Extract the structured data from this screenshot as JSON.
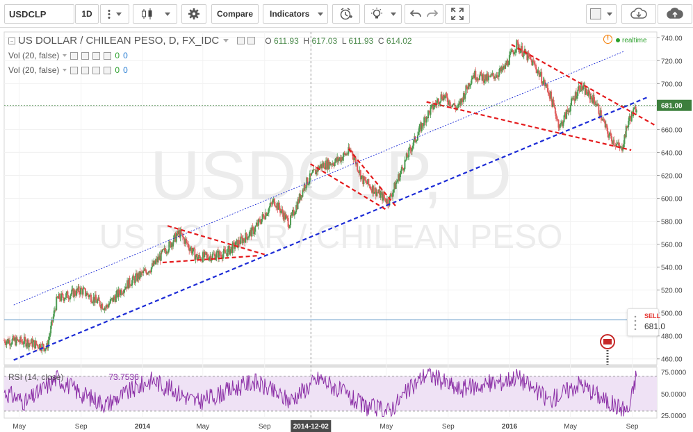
{
  "toolbar": {
    "symbol": "USDCLP",
    "interval": "1D",
    "compare_label": "Compare",
    "indicators_label": "Indicators",
    "icons": [
      "bar-chart-icon",
      "settings-gear-icon",
      "alert-clock-icon",
      "idea-bulb-icon",
      "undo-icon",
      "redo-icon",
      "fullscreen-icon",
      "color-square-icon",
      "cloud-download-icon",
      "cloud-upload-icon"
    ]
  },
  "legend": {
    "title": "US DOLLAR / CHILEAN PESO, D, FX_IDC",
    "open_label": "O",
    "open": "611.93",
    "high_label": "H",
    "high": "617.03",
    "low_label": "L",
    "low": "611.93",
    "close_label": "C",
    "close": "614.02",
    "realtime": "realtime",
    "vol1": "Vol (20, false)",
    "vol1_a": "0",
    "vol1_b": "0",
    "vol2": "Vol (20, false)",
    "vol2_a": "0",
    "vol2_b": "0"
  },
  "watermark": {
    "line1": "USDCLP, D",
    "line2": "US DOLLAR / CHILEAN PESO"
  },
  "sell_box": {
    "label": "SELL",
    "value": "681.0",
    "value_small": "0"
  },
  "price_tag": "681.00",
  "highlighted_date": "2014-12-02",
  "colors": {
    "up": "#4d9b52",
    "down": "#e05d5d",
    "blue": "#1c2bd6",
    "red": "#e41a1c",
    "rsi_line": "#8b2fa6",
    "rsi_band": "#efe2f5",
    "tag": "#3d7f3d"
  },
  "chart_data": [
    {
      "type": "line",
      "title": "US DOLLAR / CHILEAN PESO, D, FX_IDC",
      "price_axis": {
        "ticks": [
          "740.00",
          "720.00",
          "700.00",
          "680.00",
          "660.00",
          "640.00",
          "620.00",
          "600.00",
          "580.00",
          "560.00",
          "540.00",
          "520.00",
          "500.00",
          "480.00",
          "460.00"
        ],
        "ylim": [
          455,
          745
        ]
      },
      "time_axis": {
        "ticks": [
          "May",
          "Sep",
          "2014",
          "May",
          "Sep",
          "2014-12-02",
          "May",
          "Sep",
          "2016",
          "May",
          "Sep"
        ]
      },
      "xlim": [
        "2013-04-01",
        "2016-10-20"
      ],
      "series": [
        {
          "name": "USDCLP daily",
          "x": [
            "2013-04-01",
            "2013-05-15",
            "2013-06-25",
            "2013-07-15",
            "2013-09-01",
            "2013-10-20",
            "2013-12-01",
            "2014-01-20",
            "2014-03-15",
            "2014-04-20",
            "2014-06-15",
            "2014-08-10",
            "2014-09-20",
            "2014-10-20",
            "2014-11-20",
            "2014-12-20",
            "2015-01-20",
            "2015-02-20",
            "2015-03-15",
            "2015-05-05",
            "2015-06-15",
            "2015-07-20",
            "2015-08-20",
            "2015-09-20",
            "2015-10-20",
            "2015-11-20",
            "2015-12-20",
            "2016-01-15",
            "2016-02-20",
            "2016-03-20",
            "2016-04-10",
            "2016-05-20",
            "2016-06-20",
            "2016-07-15",
            "2016-08-10",
            "2016-08-25",
            "2016-09-05",
            "2016-09-10"
          ],
          "y": [
            476,
            475,
            470,
            512,
            520,
            505,
            525,
            540,
            570,
            548,
            552,
            572,
            598,
            578,
            612,
            628,
            632,
            642,
            616,
            597,
            640,
            672,
            690,
            678,
            708,
            704,
            712,
            734,
            716,
            692,
            662,
            698,
            684,
            656,
            642,
            668,
            676,
            681
          ]
        }
      ],
      "annotations": [
        {
          "type": "trendline",
          "style": "dashed",
          "color": "#1c2bd6",
          "x": [
            "2013-04-20",
            "2016-10-01"
          ],
          "y": [
            459,
            688
          ]
        },
        {
          "type": "trendline",
          "style": "dotted",
          "color": "#1c2bd6",
          "x": [
            "2013-04-20",
            "2016-08-15"
          ],
          "y": [
            507,
            728
          ]
        },
        {
          "type": "trendline",
          "style": "dashed",
          "color": "#e41a1c",
          "x": [
            "2014-02-20",
            "2014-09-01"
          ],
          "y": [
            576,
            551
          ]
        },
        {
          "type": "trendline",
          "style": "dashed",
          "color": "#e41a1c",
          "x": [
            "2014-02-10",
            "2014-08-20"
          ],
          "y": [
            544,
            550
          ]
        },
        {
          "type": "trendline",
          "style": "dashed",
          "color": "#e41a1c",
          "x": [
            "2014-12-01",
            "2015-05-01"
          ],
          "y": [
            630,
            590
          ]
        },
        {
          "type": "trendline",
          "style": "dashed",
          "color": "#e41a1c",
          "x": [
            "2015-02-15",
            "2015-05-20"
          ],
          "y": [
            643,
            593
          ]
        },
        {
          "type": "trendline",
          "style": "dashed",
          "color": "#e41a1c",
          "x": [
            "2015-07-20",
            "2016-08-30"
          ],
          "y": [
            684,
            642
          ]
        },
        {
          "type": "trendline",
          "style": "dashed",
          "color": "#e41a1c",
          "x": [
            "2016-01-05",
            "2016-10-15"
          ],
          "y": [
            734,
            664
          ]
        },
        {
          "type": "hline",
          "y": 681.0,
          "style": "dotted",
          "color": "#3d7f3d"
        },
        {
          "type": "hline",
          "y": 494,
          "style": "solid",
          "color": "#7aa7cf"
        }
      ]
    },
    {
      "type": "line",
      "title": "RSI (14, close)",
      "legend_label": "RSI (14, close)",
      "last_value": "73.7536",
      "price_axis": {
        "ticks": [
          "75.0000",
          "50.0000",
          "25.0000"
        ],
        "ylim": [
          22,
          80
        ]
      },
      "band": [
        30,
        70
      ],
      "series": [
        {
          "name": "RSI",
          "x": [
            "2013-04-01",
            "2013-05-15",
            "2013-07-15",
            "2013-09-01",
            "2013-10-20",
            "2014-01-20",
            "2014-04-20",
            "2014-08-10",
            "2014-10-20",
            "2014-12-20",
            "2015-03-15",
            "2015-05-05",
            "2015-07-20",
            "2015-09-20",
            "2015-12-20",
            "2016-01-15",
            "2016-03-20",
            "2016-05-20",
            "2016-07-15",
            "2016-08-25",
            "2016-09-10"
          ],
          "y": [
            52,
            40,
            68,
            50,
            38,
            66,
            40,
            64,
            42,
            68,
            36,
            30,
            74,
            55,
            64,
            70,
            42,
            62,
            40,
            30,
            73.75
          ]
        }
      ]
    }
  ]
}
